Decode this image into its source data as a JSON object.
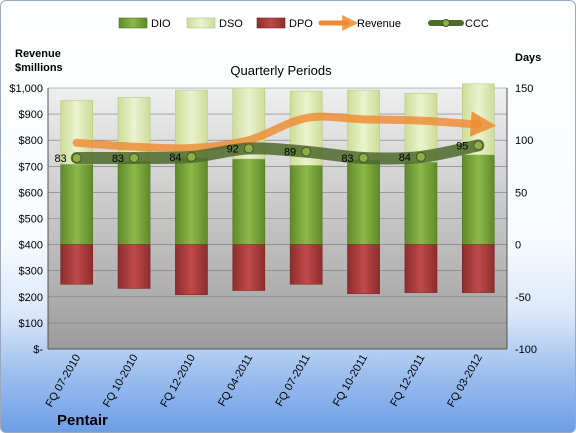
{
  "chart_data": {
    "type": "bar",
    "title": "Quarterly Periods",
    "company": "Pentair",
    "y_left_label": [
      "Revenue",
      "$millions"
    ],
    "y_right_label": "Days",
    "y_left_ticks": [
      "$-",
      "$100",
      "$200",
      "$300",
      "$400",
      "$500",
      "$600",
      "$700",
      "$800",
      "$900",
      "$1,000"
    ],
    "y_left_lim": [
      0,
      1000
    ],
    "y_right_lim": [
      -100,
      150
    ],
    "y_right_ticks": [
      -100,
      -50,
      0,
      50,
      100,
      150
    ],
    "categories": [
      "FQ 07-2010",
      "FQ 10-2010",
      "FQ 12-2010",
      "FQ 04-2011",
      "FQ 07-2011",
      "FQ 10-2011",
      "FQ 12-2011",
      "FQ 03-2012"
    ],
    "legend": [
      "DIO",
      "DSO",
      "DPO",
      "Revenue",
      "CCC"
    ],
    "series": [
      {
        "name": "DIO",
        "unit": "days",
        "values": [
          77,
          80,
          83,
          82,
          76,
          81,
          79,
          86
        ]
      },
      {
        "name": "DSO",
        "unit": "days",
        "values": [
          61,
          61,
          65,
          68,
          71,
          67,
          66,
          68
        ]
      },
      {
        "name": "DPO",
        "unit": "days",
        "values": [
          -38,
          -42,
          -48,
          -44,
          -38,
          -47,
          -46,
          -46
        ]
      },
      {
        "name": "Revenue",
        "unit": "$millions",
        "values": [
          790,
          775,
          770,
          800,
          885,
          880,
          875,
          860
        ]
      },
      {
        "name": "CCC",
        "unit": "days",
        "values": [
          83,
          83,
          84,
          92,
          89,
          83,
          84,
          95
        ]
      }
    ],
    "ccc_labels": [
      "83",
      "83",
      "84",
      "92",
      "89",
      "83",
      "84",
      "95"
    ],
    "colors": {
      "DIO": "#7fa33c",
      "DSO": "#dbe8b0",
      "DPO": "#a83a3a",
      "Revenue": "#f08a30",
      "CCC": "#4e6a2c"
    },
    "grid": true
  }
}
